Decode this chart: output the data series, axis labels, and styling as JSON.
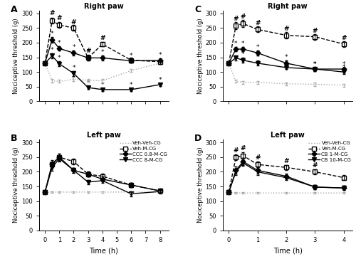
{
  "time_AB": [
    0,
    0.5,
    1,
    2,
    3,
    4,
    6,
    8
  ],
  "time_CD": [
    0,
    0.25,
    0.5,
    1,
    2,
    3,
    4
  ],
  "panel_A": {
    "title": "Right paw",
    "veh_veh_cg": [
      130,
      70,
      68,
      75,
      72,
      70,
      105,
      130
    ],
    "veh_veh_cg_err": [
      4,
      5,
      5,
      5,
      5,
      5,
      5,
      5
    ],
    "veh_m_cg": [
      130,
      275,
      260,
      250,
      148,
      195,
      140,
      135
    ],
    "veh_m_cg_err": [
      4,
      10,
      10,
      10,
      10,
      8,
      8,
      8
    ],
    "low_m_cg": [
      130,
      210,
      180,
      165,
      148,
      148,
      138,
      140
    ],
    "low_m_cg_err": [
      4,
      10,
      8,
      8,
      8,
      8,
      6,
      6
    ],
    "high_m_cg": [
      130,
      155,
      128,
      95,
      47,
      40,
      40,
      57
    ],
    "high_m_cg_err": [
      4,
      8,
      8,
      8,
      5,
      5,
      5,
      5
    ],
    "hash_x": [
      0.5,
      1,
      2,
      3,
      4
    ],
    "hash_y": [
      290,
      272,
      258,
      160,
      205
    ],
    "star1_x": [
      0.5,
      1,
      2,
      3,
      4,
      6,
      8
    ],
    "star1_y": [
      220,
      188,
      173,
      156,
      156,
      144,
      146
    ],
    "star2_x": [
      0.5,
      1,
      2,
      3,
      4,
      6,
      8
    ],
    "star2_y": [
      163,
      136,
      103,
      52,
      45,
      45,
      62
    ]
  },
  "panel_B": {
    "title": "Left paw",
    "veh_veh_cg": [
      130,
      131,
      131,
      131,
      131,
      131,
      131,
      131
    ],
    "veh_veh_cg_err": [
      3,
      3,
      3,
      3,
      3,
      3,
      3,
      3
    ],
    "veh_m_cg": [
      130,
      225,
      250,
      235,
      192,
      185,
      155,
      135
    ],
    "veh_m_cg_err": [
      4,
      10,
      12,
      10,
      8,
      8,
      8,
      6
    ],
    "low_m_cg": [
      130,
      228,
      250,
      205,
      192,
      175,
      155,
      135
    ],
    "low_m_cg_err": [
      4,
      12,
      12,
      8,
      8,
      8,
      8,
      6
    ],
    "high_m_cg": [
      130,
      215,
      245,
      205,
      165,
      170,
      125,
      133
    ],
    "high_m_cg_err": [
      4,
      12,
      10,
      8,
      8,
      8,
      8,
      6
    ]
  },
  "panel_C": {
    "title": "Right paw",
    "veh_veh_cg": [
      130,
      68,
      65,
      65,
      60,
      58,
      55
    ],
    "veh_veh_cg_err": [
      4,
      5,
      5,
      5,
      5,
      5,
      5
    ],
    "veh_m_cg": [
      130,
      258,
      265,
      245,
      225,
      220,
      195
    ],
    "veh_m_cg_err": [
      4,
      12,
      12,
      10,
      10,
      10,
      10
    ],
    "low_m_cg": [
      130,
      178,
      178,
      165,
      130,
      110,
      110
    ],
    "low_m_cg_err": [
      4,
      8,
      8,
      8,
      8,
      6,
      6
    ],
    "high_m_cg": [
      130,
      148,
      140,
      130,
      115,
      110,
      100
    ],
    "high_m_cg_err": [
      4,
      8,
      8,
      8,
      6,
      6,
      6
    ],
    "hash_x": [
      0.25,
      0.5,
      1,
      2,
      3,
      4
    ],
    "hash_y": [
      270,
      278,
      255,
      235,
      230,
      205
    ],
    "star1_x": [
      0.25,
      0.5,
      1,
      2,
      3,
      4
    ],
    "star1_y": [
      186,
      186,
      173,
      138,
      116,
      116
    ],
    "star2_x": [
      0.25,
      0.5,
      1,
      2,
      3,
      4
    ],
    "star2_y": [
      156,
      148,
      138,
      121,
      116,
      106
    ]
  },
  "panel_D": {
    "title": "Left paw",
    "veh_veh_cg": [
      130,
      128,
      128,
      128,
      128,
      128,
      128
    ],
    "veh_veh_cg_err": [
      3,
      3,
      3,
      3,
      3,
      3,
      3
    ],
    "veh_m_cg": [
      130,
      250,
      255,
      225,
      215,
      200,
      180
    ],
    "veh_m_cg_err": [
      4,
      10,
      12,
      10,
      8,
      8,
      8
    ],
    "low_m_cg": [
      130,
      205,
      235,
      205,
      185,
      148,
      145
    ],
    "low_m_cg_err": [
      4,
      12,
      12,
      10,
      8,
      8,
      8
    ],
    "high_m_cg": [
      130,
      200,
      230,
      200,
      180,
      148,
      145
    ],
    "high_m_cg_err": [
      4,
      10,
      10,
      10,
      8,
      8,
      8
    ],
    "hash_x": [
      0.25,
      0.5,
      1,
      2,
      3
    ],
    "hash_y": [
      262,
      268,
      237,
      225,
      210
    ]
  },
  "legend_AB": [
    "Veh-Veh-CG",
    "Veh-M-CG",
    "CCC 0.8-M-CG",
    "CCC 8-M-CG"
  ],
  "legend_CD": [
    "Veh-Veh-CG",
    "Veh-M-CG",
    "CB 1-M-CG",
    "CB 10-M-CG"
  ],
  "ylim": [
    0,
    310
  ],
  "yticks": [
    0,
    50,
    100,
    150,
    200,
    250,
    300
  ],
  "ylabel": "Nociceptive threshold (g)",
  "xlabel": "Time (h)"
}
